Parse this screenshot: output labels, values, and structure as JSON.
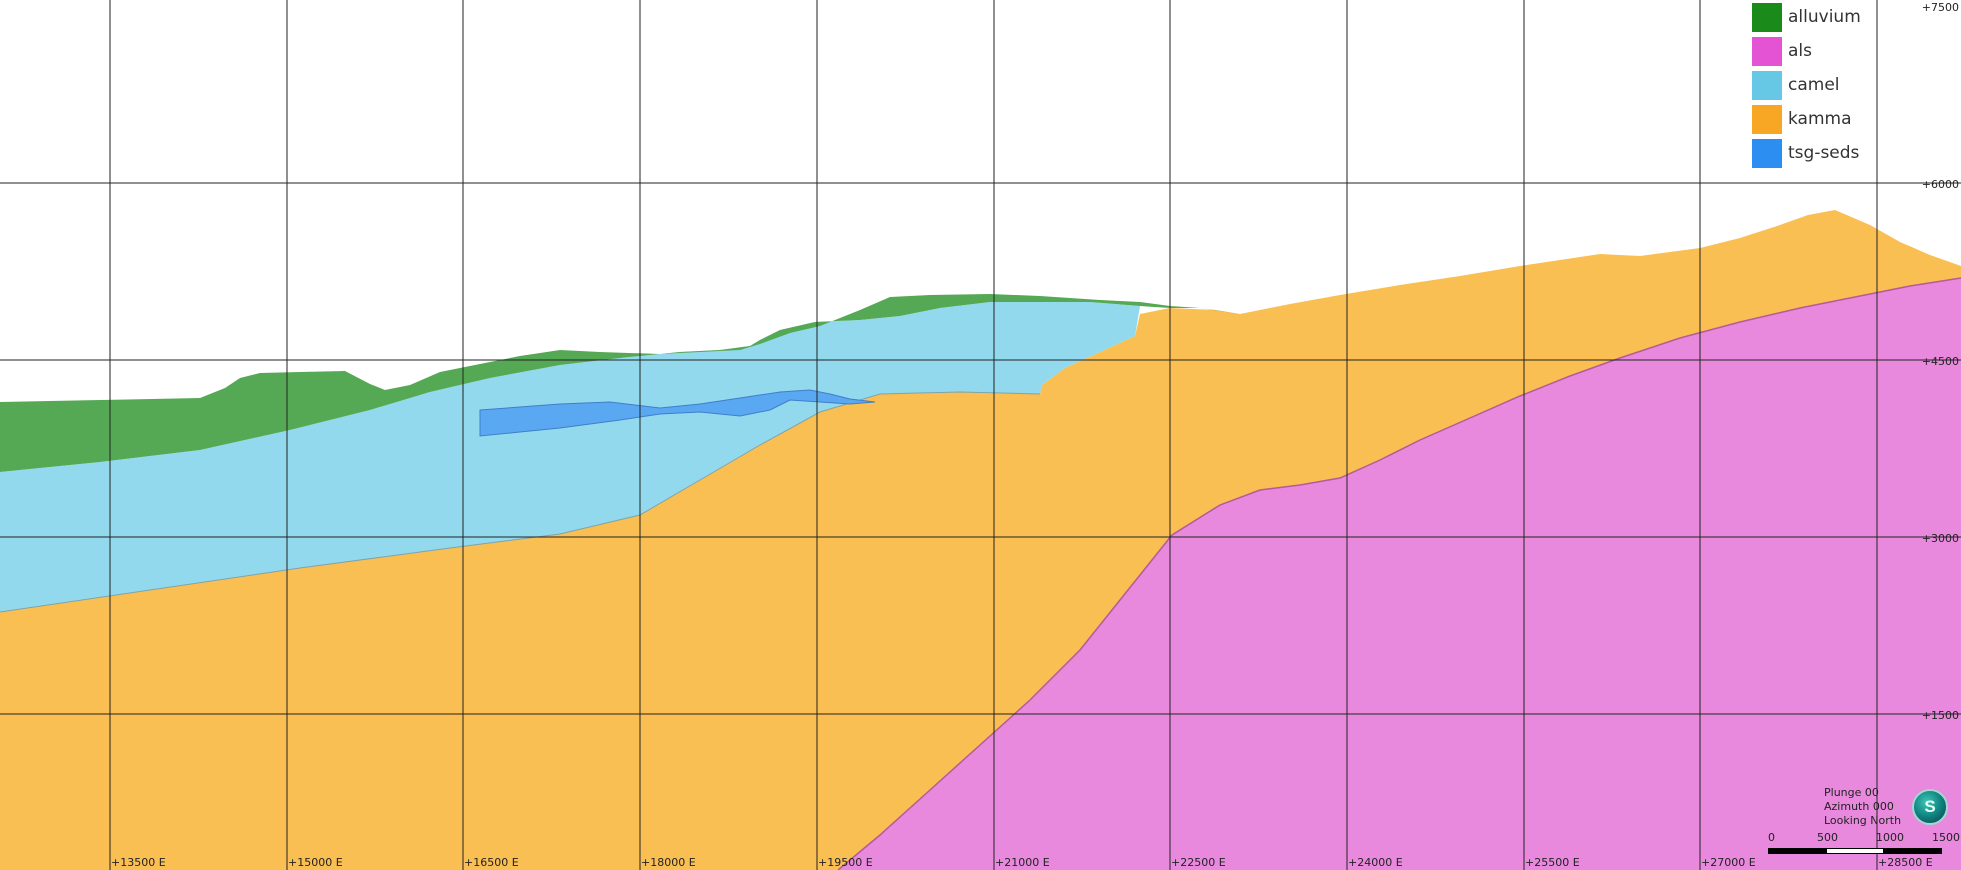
{
  "section_view": {
    "x_axis_ticks": [
      "+13500 E",
      "+15000 E",
      "+16500 E",
      "+18000 E",
      "+19500 E",
      "+21000 E",
      "+22500 E",
      "+24000 E",
      "+25500 E",
      "+27000 E",
      "+28500 E"
    ],
    "y_axis_ticks": [
      "+7500",
      "+6000",
      "+4500",
      "+3000",
      "+1500"
    ]
  },
  "legend": {
    "items": [
      {
        "label": "alluvium",
        "color": "#1a8a1a"
      },
      {
        "label": "als",
        "color": "#e453d4"
      },
      {
        "label": "camel",
        "color": "#66c8e4"
      },
      {
        "label": "kamma",
        "color": "#f7a724"
      },
      {
        "label": "tsg-seds",
        "color": "#2b8ef0"
      }
    ]
  },
  "units": {
    "alluvium": {
      "color": "#55a955"
    },
    "camel": {
      "color": "#93d9ee"
    },
    "kamma": {
      "color": "#fabf52"
    },
    "als": {
      "color": "#e889dd"
    },
    "tsg_seds": {
      "color": "#5aa8f2"
    }
  },
  "view_info": {
    "plunge": "Plunge 00",
    "azimuth": "Azimuth 000",
    "looking": "Looking North",
    "compass_letter": "S"
  },
  "scale_bar": {
    "labels": [
      "0",
      "500",
      "1000",
      "1500"
    ]
  }
}
